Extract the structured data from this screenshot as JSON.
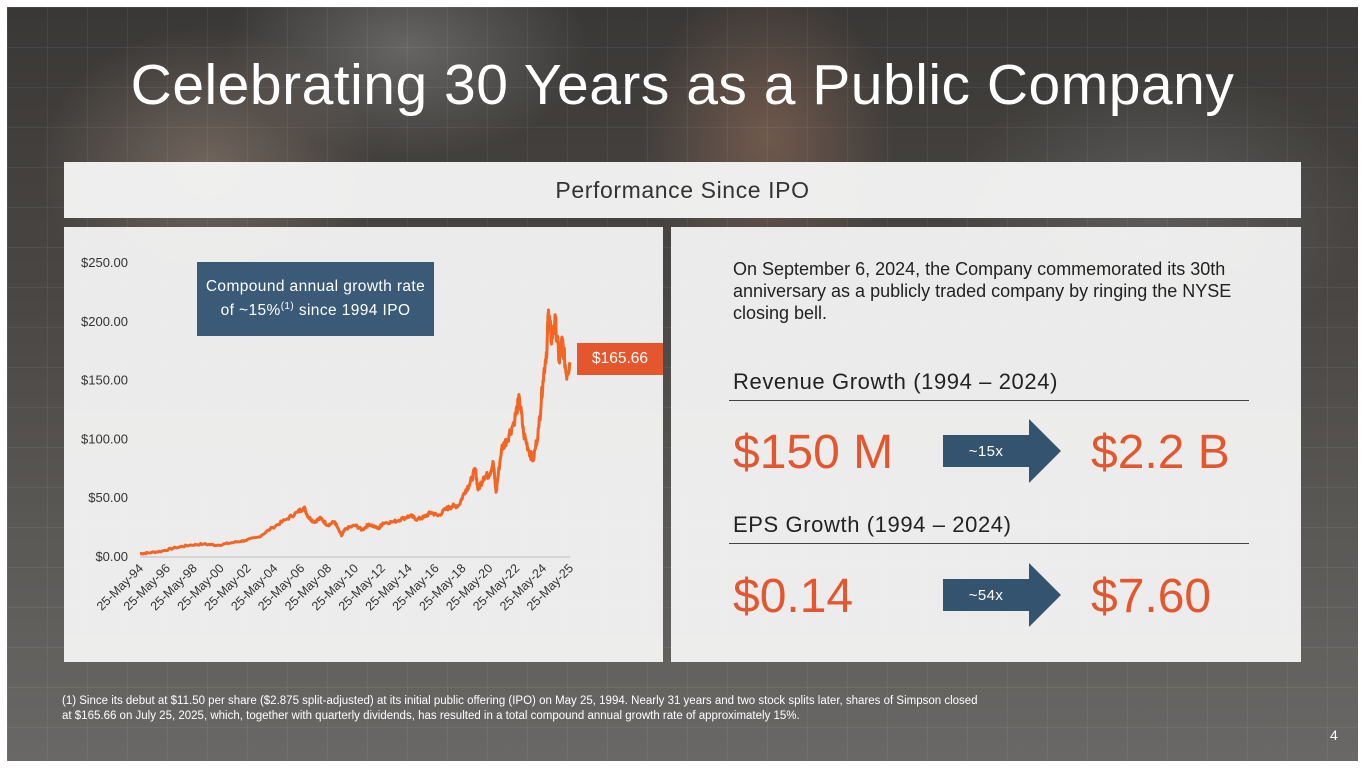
{
  "slide": {
    "title": "Celebrating 30 Years as a Public Company",
    "banner": "Performance Since IPO",
    "page_number": "4",
    "footnote_line1": "(1) Since its debut at $11.50 per share ($2.875 split-adjusted) at its initial public offering (IPO) on May 25, 1994. Nearly 31 years and two stock splits later, shares of Simpson closed",
    "footnote_line2": "at $165.66 on July 25, 2025, which, together with quarterly dividends, has resulted in a total compound annual growth rate of approximately 15%."
  },
  "chart_box": {
    "cagr_prefix": "Compound annual growth rate of ~15%",
    "cagr_sup": "(1)",
    "cagr_suffix": " since 1994 IPO",
    "last_price_label": "$165.66"
  },
  "chart_data": {
    "type": "line",
    "title": "",
    "xlabel": "",
    "ylabel": "",
    "ylim": [
      0,
      250
    ],
    "y_ticks": [
      "$0.00",
      "$50.00",
      "$100.00",
      "$150.00",
      "$200.00",
      "$250.00"
    ],
    "x_ticks": [
      "25-May-94",
      "25-May-96",
      "25-May-98",
      "25-May-00",
      "25-May-02",
      "25-May-04",
      "25-May-06",
      "25-May-08",
      "25-May-10",
      "25-May-12",
      "25-May-14",
      "25-May-16",
      "25-May-18",
      "25-May-20",
      "25-May-22",
      "25-May-24",
      "25-May-25"
    ],
    "series": [
      {
        "color": "#f26522",
        "points": [
          [
            1994.4,
            2.9
          ],
          [
            1995.0,
            3.5
          ],
          [
            1996.0,
            5
          ],
          [
            1997.0,
            8
          ],
          [
            1998.0,
            10
          ],
          [
            1999.0,
            11
          ],
          [
            2000.0,
            10
          ],
          [
            2001.0,
            12
          ],
          [
            2002.0,
            14
          ],
          [
            2003.0,
            17
          ],
          [
            2004.0,
            25
          ],
          [
            2005.0,
            32
          ],
          [
            2005.8,
            38
          ],
          [
            2006.3,
            42
          ],
          [
            2006.6,
            34
          ],
          [
            2007.0,
            30
          ],
          [
            2007.5,
            33
          ],
          [
            2008.0,
            27
          ],
          [
            2008.5,
            30
          ],
          [
            2009.0,
            18
          ],
          [
            2009.3,
            24
          ],
          [
            2010.0,
            27
          ],
          [
            2010.5,
            23
          ],
          [
            2011.0,
            28
          ],
          [
            2011.7,
            24
          ],
          [
            2012.0,
            29
          ],
          [
            2012.8,
            30
          ],
          [
            2013.5,
            33
          ],
          [
            2014.0,
            35
          ],
          [
            2014.5,
            32
          ],
          [
            2015.0,
            34
          ],
          [
            2015.5,
            38
          ],
          [
            2016.0,
            35
          ],
          [
            2016.6,
            41
          ],
          [
            2017.0,
            43
          ],
          [
            2017.5,
            44
          ],
          [
            2018.0,
            57
          ],
          [
            2018.3,
            62
          ],
          [
            2018.7,
            75
          ],
          [
            2018.9,
            57
          ],
          [
            2019.3,
            68
          ],
          [
            2019.7,
            70
          ],
          [
            2020.0,
            80
          ],
          [
            2020.2,
            55
          ],
          [
            2020.6,
            92
          ],
          [
            2021.0,
            100
          ],
          [
            2021.5,
            115
          ],
          [
            2021.9,
            135
          ],
          [
            2022.2,
            105
          ],
          [
            2022.6,
            90
          ],
          [
            2022.9,
            82
          ],
          [
            2023.3,
            110
          ],
          [
            2023.6,
            150
          ],
          [
            2023.9,
            180
          ],
          [
            2024.0,
            210
          ],
          [
            2024.2,
            185
          ],
          [
            2024.5,
            200
          ],
          [
            2024.8,
            165
          ],
          [
            2025.0,
            185
          ],
          [
            2025.3,
            155
          ],
          [
            2025.56,
            165.66
          ]
        ]
      }
    ]
  },
  "right_panel": {
    "intro": "On September 6, 2024, the Company commemorated its 30th anniversary as a publicly traded company by ringing the NYSE closing bell.",
    "revenue": {
      "heading": "Revenue Growth (1994 – 2024)",
      "start": "$150 M",
      "multiple": "~15x",
      "end": "$2.2 B"
    },
    "eps": {
      "heading": "EPS Growth (1994 – 2024)",
      "start": "$0.14",
      "multiple": "~54x",
      "end": "$7.60"
    }
  },
  "colors": {
    "accent_orange": "#e4572e",
    "series_orange": "#f26522",
    "navy_box": "#3a5a78",
    "arrow_navy": "#34536f"
  }
}
